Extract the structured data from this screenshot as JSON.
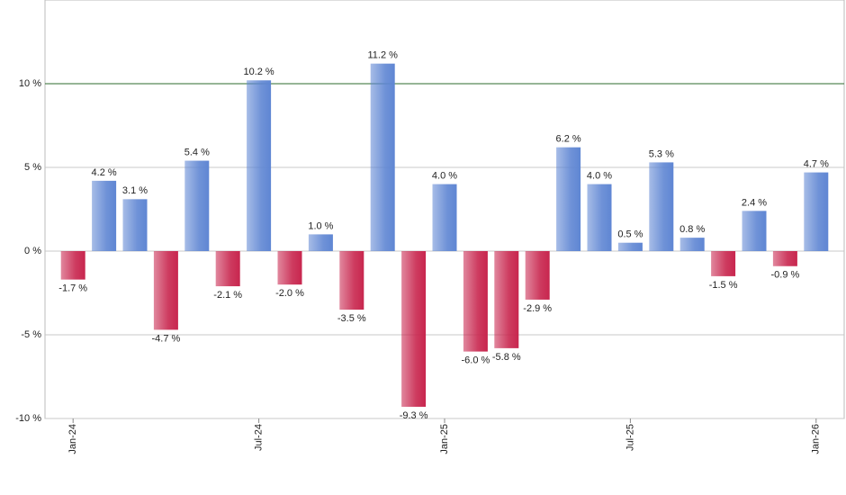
{
  "chart_data": {
    "type": "bar",
    "categories": [
      "Jan-24",
      null,
      null,
      null,
      null,
      null,
      "Jul-24",
      null,
      null,
      null,
      null,
      null,
      "Jan-25",
      null,
      null,
      null,
      null,
      null,
      "Jul-25",
      null,
      null,
      null,
      null,
      null,
      "Jan-26"
    ],
    "values": [
      -1.7,
      4.2,
      3.1,
      -4.7,
      5.4,
      -2.1,
      10.2,
      -2.0,
      1.0,
      -3.5,
      11.2,
      -9.3,
      4.0,
      -6.0,
      -5.8,
      -2.9,
      6.2,
      4.0,
      0.5,
      5.3,
      0.8,
      -1.5,
      2.4,
      -0.9,
      4.7
    ],
    "value_labels": [
      "-1.7 %",
      "4.2 %",
      "3.1 %",
      "-4.7 %",
      "5.4 %",
      "-2.1 %",
      "10.2 %",
      "-2.0 %",
      "1.0 %",
      "-3.5 %",
      "11.2 %",
      "-9.3 %",
      "4.0 %",
      "-6.0 %",
      "-5.8 %",
      "-2.9 %",
      "6.2 %",
      "4.0 %",
      "0.5 %",
      "5.3 %",
      "0.8 %",
      "-1.5 %",
      "2.4 %",
      "-0.9 %",
      "4.7 %"
    ],
    "positive_color": "#5f86d3",
    "negative_color": "#c8264e",
    "ylim": [
      -10,
      15
    ],
    "yticks": [
      {
        "value": -10,
        "label": "-10 %"
      },
      {
        "value": -5,
        "label": "-5 %"
      },
      {
        "value": 0,
        "label": "0 %"
      },
      {
        "value": 5,
        "label": "5 %"
      },
      {
        "value": 10,
        "label": "10 %"
      }
    ],
    "grid": true,
    "highlight_line": {
      "value": 10,
      "color": "#2e6b2e"
    }
  }
}
